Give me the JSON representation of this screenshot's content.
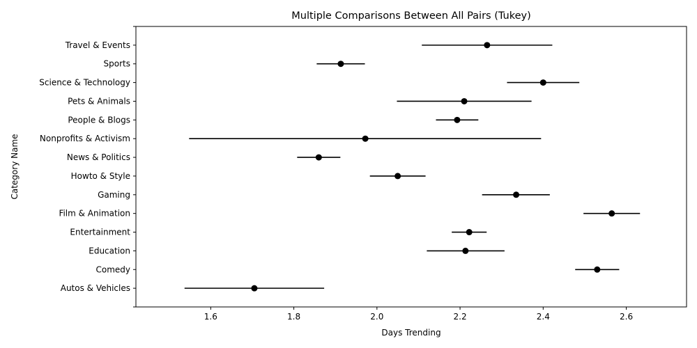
{
  "chart_data": {
    "type": "scatter",
    "title": "Multiple Comparisons Between All Pairs (Tukey)",
    "xlabel": "Days Trending",
    "ylabel": "Category Name",
    "xlim": [
      1.42,
      2.745
    ],
    "xticks": [
      1.6,
      1.8,
      2.0,
      2.2,
      2.4,
      2.6
    ],
    "xtick_labels": [
      "1.6",
      "1.8",
      "2.0",
      "2.2",
      "2.4",
      "2.6"
    ],
    "grid": false,
    "categories": [
      "Travel & Events",
      "Sports",
      "Science & Technology",
      "Pets & Animals",
      "People & Blogs",
      "Nonprofits & Activism",
      "News & Politics",
      "Howto & Style",
      "Gaming",
      "Film & Animation",
      "Entertainment",
      "Education",
      "Comedy",
      "Autos & Vehicles"
    ],
    "series": [
      {
        "mean": [
          2.265,
          1.913,
          2.4,
          2.21,
          2.193,
          1.972,
          1.86,
          2.05,
          2.335,
          2.565,
          2.222,
          2.213,
          2.53,
          1.705
        ],
        "lower": [
          2.108,
          1.855,
          2.313,
          2.048,
          2.142,
          1.548,
          1.808,
          1.983,
          2.253,
          2.497,
          2.18,
          2.12,
          2.477,
          1.537
        ],
        "upper": [
          2.422,
          1.971,
          2.487,
          2.372,
          2.244,
          2.395,
          1.912,
          2.117,
          2.416,
          2.633,
          2.264,
          2.307,
          2.583,
          1.873
        ]
      }
    ],
    "marker_color": "#000000",
    "errorbar_color": "#000000"
  }
}
